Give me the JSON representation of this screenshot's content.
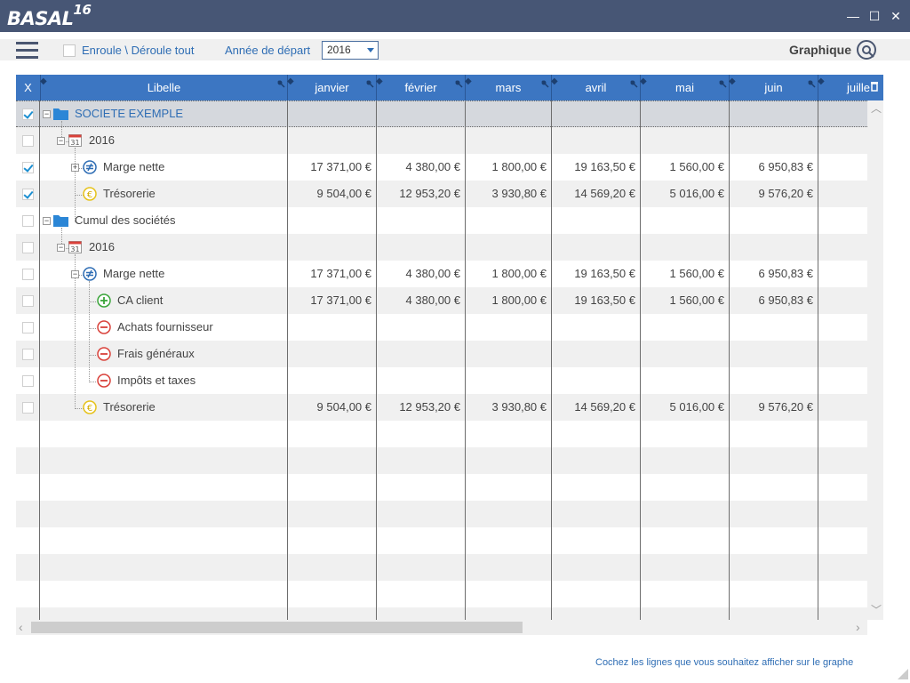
{
  "app": {
    "logo_text": "BASAL",
    "logo_version": "16"
  },
  "window_controls": {
    "minimize": "—",
    "maximize": "☐",
    "close": "✕"
  },
  "toolbar": {
    "expand_collapse_label": "Enroule \\ Déroule tout",
    "year_label": "Année de départ",
    "year_value": "2016",
    "graph_label": "Graphique"
  },
  "grid": {
    "header": {
      "x": "X",
      "libelle": "Libelle",
      "months": [
        "janvier",
        "février",
        "mars",
        "avril",
        "mai",
        "juin",
        "juille"
      ]
    },
    "rows": [
      {
        "label": "SOCIETE EXEMPLE",
        "checked": true,
        "values": [
          "",
          "",
          "",
          "",
          "",
          ""
        ]
      },
      {
        "label": "2016",
        "checked": false,
        "values": [
          "",
          "",
          "",
          "",
          "",
          ""
        ]
      },
      {
        "label": "Marge nette",
        "checked": true,
        "values": [
          "17 371,00 €",
          "4 380,00 €",
          "1 800,00 €",
          "19 163,50 €",
          "1 560,00 €",
          "6 950,83 €"
        ]
      },
      {
        "label": "Trésorerie",
        "checked": true,
        "values": [
          "9 504,00 €",
          "12 953,20 €",
          "3 930,80 €",
          "14 569,20 €",
          "5 016,00 €",
          "9 576,20 €"
        ]
      },
      {
        "label": "Cumul des sociétés",
        "checked": false,
        "values": [
          "",
          "",
          "",
          "",
          "",
          ""
        ]
      },
      {
        "label": "2016",
        "checked": false,
        "values": [
          "",
          "",
          "",
          "",
          "",
          ""
        ]
      },
      {
        "label": "Marge nette",
        "checked": false,
        "values": [
          "17 371,00 €",
          "4 380,00 €",
          "1 800,00 €",
          "19 163,50 €",
          "1 560,00 €",
          "6 950,83 €"
        ]
      },
      {
        "label": "CA client",
        "checked": false,
        "values": [
          "17 371,00 €",
          "4 380,00 €",
          "1 800,00 €",
          "19 163,50 €",
          "1 560,00 €",
          "6 950,83 €"
        ]
      },
      {
        "label": "Achats fournisseur",
        "checked": false,
        "values": [
          "",
          "",
          "",
          "",
          "",
          ""
        ]
      },
      {
        "label": "Frais généraux",
        "checked": false,
        "values": [
          "",
          "",
          "",
          "",
          "",
          ""
        ]
      },
      {
        "label": "Impôts et taxes",
        "checked": false,
        "values": [
          "",
          "",
          "",
          "",
          "",
          ""
        ]
      },
      {
        "label": "Trésorerie",
        "checked": false,
        "values": [
          "9 504,00 €",
          "12 953,20 €",
          "3 930,80 €",
          "14 569,20 €",
          "5 016,00 €",
          "9 576,20 €"
        ]
      }
    ]
  },
  "status_text": "Cochez les lignes que vous souhaitez afficher sur le graphe",
  "colors": {
    "titlebar": "#475675",
    "header": "#3c76c2",
    "link": "#2e6db4",
    "check": "#1c8fd1"
  }
}
